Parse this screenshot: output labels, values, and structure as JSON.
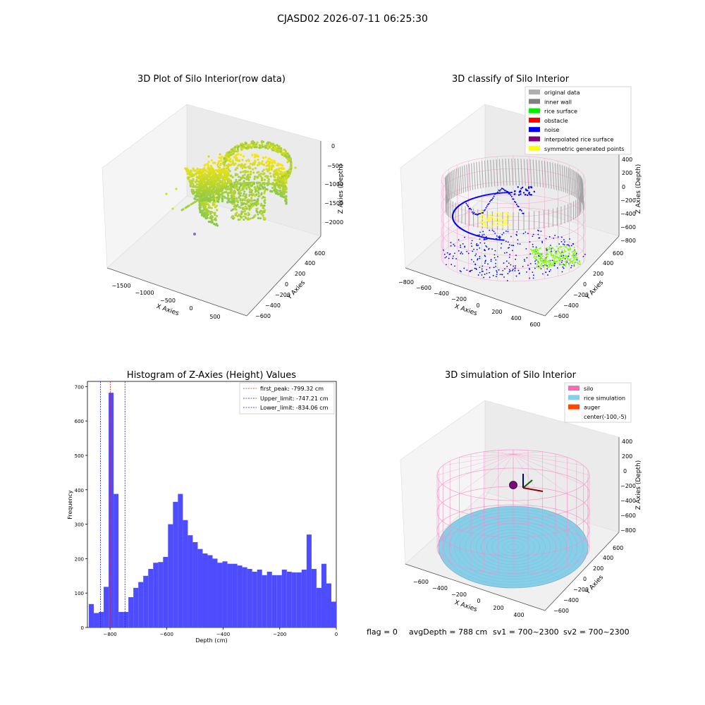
{
  "figure": {
    "suptitle": "CJASD02 2026-07-11 06:25:30",
    "footer": {
      "flag": "flag = 0",
      "avg_depth": "avgDepth = 788 cm",
      "sv1": "sv1 = 700~2300",
      "sv2": "sv2 = 700~2300"
    }
  },
  "colors": {
    "hist_bar": "#4d4dff",
    "peak_line": "#e41a1c",
    "limit_line": "#1f1fcc",
    "wire": "#ff88c8",
    "gray_points": "#a0a0a0",
    "noise": "#0000ff",
    "rice": "#7cfc00",
    "symmetric": "#ffff33",
    "simulation": "#87cfe8"
  },
  "chart_data": [
    {
      "type": "scatter",
      "title": "3D Plot of Silo Interior(row data)",
      "xlabel": "X Axies",
      "ylabel": "Y Axies",
      "zlabel": "Z Axies (Depth)",
      "x_ticks": [
        "−1500",
        "−1000",
        "−500",
        "0",
        "500"
      ],
      "y_ticks": [
        "−600",
        "−400",
        "−200",
        "0",
        "200",
        "400",
        "600"
      ],
      "z_ticks": [
        "0",
        "−500",
        "−1000",
        "−1500",
        "−2000"
      ]
    },
    {
      "type": "scatter",
      "title": "3D classify of Silo Interior",
      "xlabel": "X Axies",
      "ylabel": "Y Axies",
      "zlabel": "Z Axies (Depth)",
      "x_ticks": [
        "−800",
        "−600",
        "−400",
        "−200",
        "0",
        "200",
        "400",
        "600"
      ],
      "y_ticks": [
        "−600",
        "−400",
        "−200",
        "0",
        "200",
        "400",
        "600"
      ],
      "z_ticks": [
        "400",
        "200",
        "0",
        "−200",
        "−400",
        "−600",
        "−800"
      ],
      "legend": [
        {
          "label": "original data",
          "color": "#b0b0b0"
        },
        {
          "label": "inner wall",
          "color": "#808080"
        },
        {
          "label": "rice surface",
          "color": "#00ee00"
        },
        {
          "label": "obstacle",
          "color": "#ff0000"
        },
        {
          "label": "noise",
          "color": "#0000ff"
        },
        {
          "label": "interpolated rice surface",
          "color": "#800080"
        },
        {
          "label": "symmetric generated points",
          "color": "#ffff00"
        }
      ]
    },
    {
      "type": "bar",
      "title": "Histogram of Z-Axies (Height) Values",
      "xlabel": "Depth (cm)",
      "ylabel": "Frequency",
      "xlim": [
        -880,
        0
      ],
      "ylim": [
        0,
        715
      ],
      "x_ticks": [
        "−800",
        "−600",
        "−400",
        "−200",
        "0"
      ],
      "y_ticks": [
        "0",
        "100",
        "200",
        "300",
        "400",
        "500",
        "600",
        "700"
      ],
      "bin_width": 17.5,
      "bin_start": -875,
      "values": [
        68,
        42,
        45,
        118,
        682,
        388,
        45,
        45,
        88,
        115,
        132,
        150,
        170,
        188,
        190,
        205,
        300,
        365,
        388,
        312,
        268,
        248,
        228,
        215,
        210,
        200,
        188,
        192,
        185,
        185,
        180,
        175,
        170,
        162,
        168,
        152,
        162,
        152,
        152,
        168,
        162,
        160,
        160,
        168,
        270,
        170,
        115,
        185,
        128,
        75
      ],
      "lines": [
        {
          "label": "first_peak: -799.32 cm",
          "x": -799.32,
          "style": "red"
        },
        {
          "label": "Upper_limit: -747.21 cm",
          "x": -747.21,
          "style": "blue"
        },
        {
          "label": "Lower_limit: -834.06 cm",
          "x": -834.06,
          "style": "blue"
        }
      ]
    },
    {
      "type": "scatter",
      "title": "3D simulation of Silo Interior",
      "xlabel": "X Axies",
      "ylabel": "Y Axies",
      "zlabel": "Z Axies (Depth)",
      "x_ticks": [
        "−600",
        "−400",
        "−200",
        "0",
        "200",
        "400"
      ],
      "y_ticks": [
        "−600",
        "−400",
        "−200",
        "0",
        "200",
        "400",
        "600"
      ],
      "z_ticks": [
        "400",
        "200",
        "0",
        "−200",
        "−400",
        "−600",
        "−800"
      ],
      "legend": [
        {
          "label": "silo",
          "color": "#ff69b4"
        },
        {
          "label": "rice simulation",
          "color": "#87ceeb"
        },
        {
          "label": "auger",
          "color": "#ff4500"
        },
        {
          "label": "center(-100,-5)",
          "color": ""
        }
      ]
    }
  ]
}
